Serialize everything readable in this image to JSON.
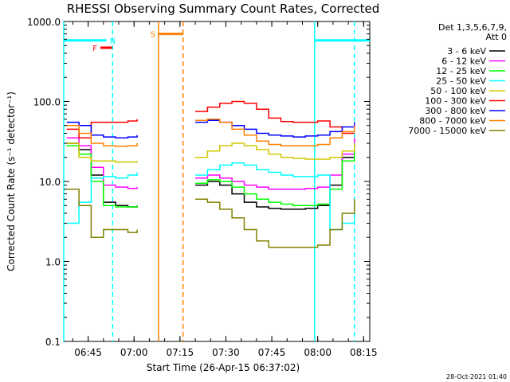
{
  "chart_data": {
    "type": "line",
    "title": "RHESSI Observing Summary Count Rates, Corrected",
    "xlabel": "Start Time (26-Apr-15 06:37:02)",
    "ylabel": "Corrected Count Rate (s⁻¹ detector⁻¹)",
    "yscale": "log",
    "xlim": [
      "06:37:02",
      "08:17:00"
    ],
    "ylim": [
      0.1,
      1000.0
    ],
    "x_ticks": [
      "06:45",
      "07:00",
      "07:15",
      "07:30",
      "07:45",
      "08:00",
      "08:15"
    ],
    "y_ticks": [
      "0.1",
      "1.0",
      "10.0",
      "100.0",
      "1000.0"
    ],
    "grid": false,
    "legend_placement": "right",
    "legend_header": [
      "Det 1,3,5,6,7,9,",
      "Att 0"
    ],
    "x": [
      "06:38",
      "06:42",
      "06:46",
      "06:50",
      "06:54",
      "06:58",
      "07:01",
      "07:10",
      "07:17",
      "07:20",
      "07:24",
      "07:28",
      "07:32",
      "07:36",
      "07:40",
      "07:44",
      "07:48",
      "07:52",
      "07:56",
      "08:00",
      "08:04",
      "08:08",
      "08:12"
    ],
    "series": [
      {
        "name": "3 - 6 keV",
        "color": "#000000",
        "values": [
          30,
          25,
          12,
          5.5,
          5.0,
          4.8,
          5.0,
          null,
          null,
          9.0,
          10.0,
          9.0,
          7.0,
          5.5,
          4.8,
          4.6,
          4.5,
          4.5,
          4.6,
          5.0,
          9.0,
          20,
          30
        ]
      },
      {
        "name": "6 - 12 keV",
        "color": "#ff00ff",
        "values": [
          35,
          28,
          15,
          9.0,
          8.5,
          8.2,
          8.5,
          null,
          null,
          11,
          12,
          11,
          10,
          9.0,
          8.5,
          8.0,
          8.0,
          8.0,
          8.2,
          8.5,
          12,
          22,
          35
        ]
      },
      {
        "name": "12 - 25 keV",
        "color": "#00ff00",
        "values": [
          28,
          22,
          10,
          5.0,
          4.8,
          4.8,
          5.0,
          null,
          null,
          9.5,
          10.5,
          10,
          8.5,
          7.0,
          6.0,
          5.5,
          5.2,
          5.0,
          5.0,
          5.2,
          8.0,
          18,
          28
        ]
      },
      {
        "name": "25 - 50 keV",
        "color": "#00ffff",
        "values": [
          3.0,
          5.5,
          11,
          11.5,
          11,
          12,
          13,
          null,
          null,
          12,
          14,
          16,
          17,
          16,
          14,
          13,
          12,
          11.5,
          11.5,
          12,
          2.5,
          3.0,
          4.0
        ]
      },
      {
        "name": "50 - 100 keV",
        "color": "#d2c800",
        "values": [
          30,
          20,
          18,
          18,
          17.5,
          17.5,
          18,
          null,
          null,
          20,
          24,
          28,
          30,
          28,
          25,
          22,
          20,
          19.5,
          19,
          19,
          20,
          24,
          30
        ]
      },
      {
        "name": "100 - 300 keV",
        "color": "#ff0000",
        "values": [
          45,
          35,
          55,
          55,
          55,
          57,
          60,
          null,
          null,
          75,
          85,
          95,
          100,
          95,
          80,
          62,
          56,
          55,
          55,
          57,
          48,
          40,
          40
        ]
      },
      {
        "name": "300 - 800 keV",
        "color": "#0000ff",
        "values": [
          55,
          50,
          38,
          36,
          35,
          36,
          38,
          null,
          null,
          55,
          58,
          55,
          50,
          45,
          40,
          38,
          37,
          36,
          37,
          38,
          42,
          48,
          55
        ]
      },
      {
        "name": "800 - 7000 keV",
        "color": "#ff8000",
        "values": [
          50,
          40,
          30,
          28,
          27.5,
          28,
          30,
          null,
          null,
          58,
          60,
          55,
          45,
          38,
          32,
          29,
          28,
          28,
          28,
          29,
          35,
          42,
          50
        ]
      },
      {
        "name": "7000 - 15000 keV",
        "color": "#808000",
        "values": [
          8.0,
          5.0,
          2.0,
          2.5,
          2.5,
          2.3,
          2.5,
          null,
          null,
          6.0,
          5.5,
          4.5,
          3.5,
          2.5,
          1.8,
          1.5,
          1.5,
          1.5,
          1.5,
          1.6,
          2.5,
          4.0,
          6.0
        ]
      }
    ],
    "flags": [
      {
        "label": "N",
        "color": "#00ffff",
        "start": "06:37:02",
        "end": "06:51:00",
        "y": 580
      },
      {
        "label": "F",
        "color": "#ff0000",
        "start": "06:49:00",
        "end": "06:53:00",
        "y": 470
      },
      {
        "label": "S",
        "color": "#ff8000",
        "start": "07:08:00",
        "end": "07:16:00",
        "y": 700
      },
      {
        "label": "",
        "color": "#00ffff",
        "start": "07:59:00",
        "end": "08:17:00",
        "y": 580
      }
    ],
    "markers": [
      {
        "time": "06:37:02",
        "color": "#00ffff",
        "style": "solid"
      },
      {
        "time": "06:53:00",
        "color": "#00ffff",
        "style": "dashed"
      },
      {
        "time": "07:08:00",
        "color": "#ff8000",
        "style": "solid"
      },
      {
        "time": "07:16:00",
        "color": "#ff8000",
        "style": "dashed"
      },
      {
        "time": "07:59:00",
        "color": "#00ffff",
        "style": "solid"
      },
      {
        "time": "08:12:00",
        "color": "#00ffff",
        "style": "dashed"
      }
    ]
  },
  "footer_timestamp": "28-Oct-2021 01:40"
}
